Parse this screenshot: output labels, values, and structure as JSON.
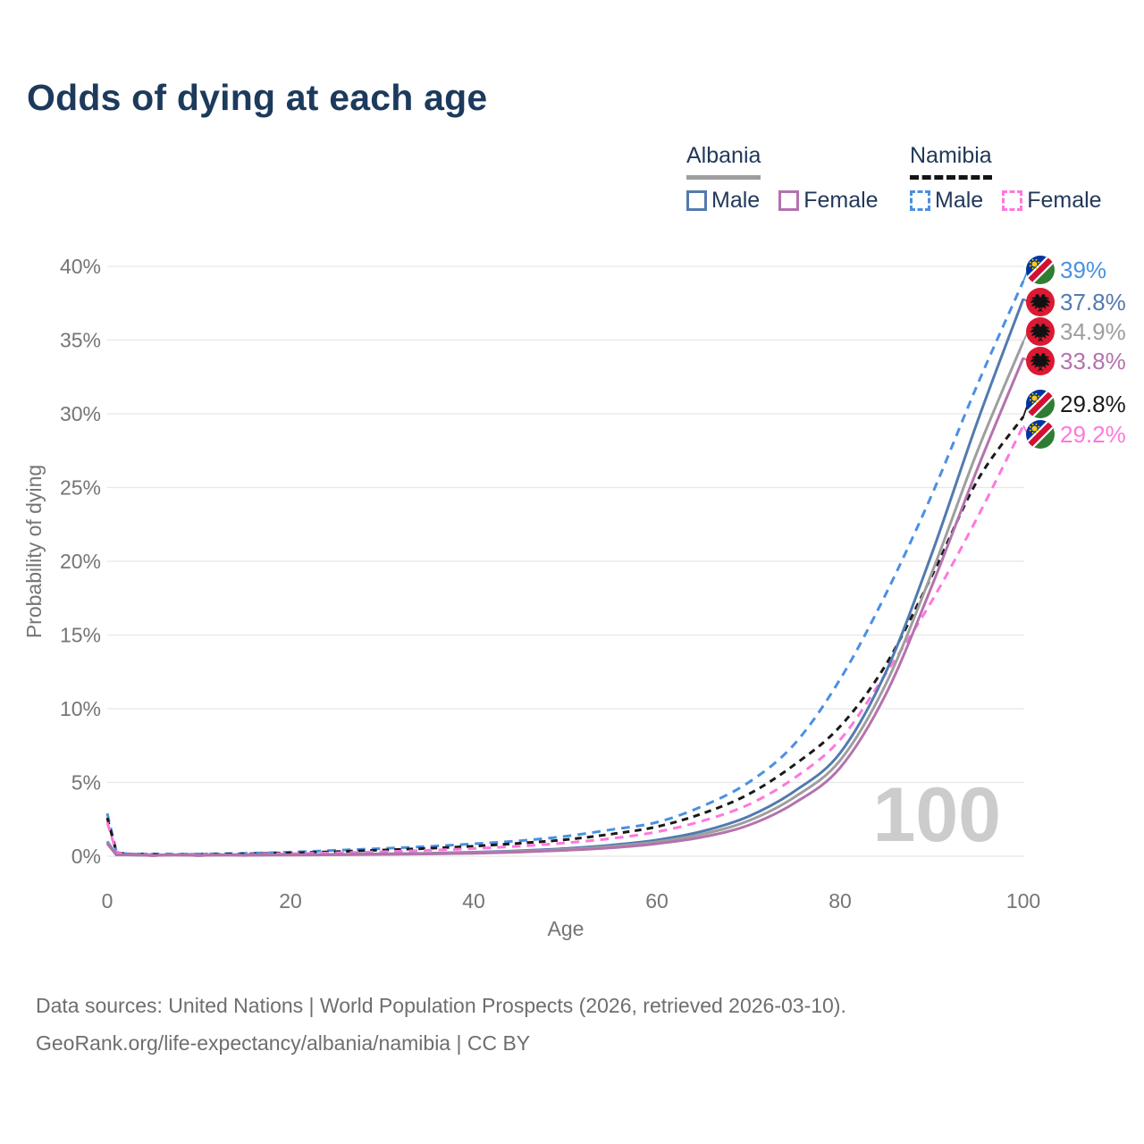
{
  "title": "Odds of dying at each age",
  "legend": {
    "albania": {
      "label": "Albania",
      "male": "Male",
      "female": "Female"
    },
    "namibia": {
      "label": "Namibia",
      "male": "Male",
      "female": "Female"
    }
  },
  "colors": {
    "title": "#1c3a5c",
    "legend_text": "#22395b",
    "axis_text": "#757575",
    "grid": "#e7e7e7",
    "watermark": "#cccccc",
    "footer": "#6e6e6e",
    "albania_underline": "#9e9e9e",
    "namibia_underline": "#141414"
  },
  "chart_data": {
    "type": "line",
    "title": "Odds of dying at each age",
    "xlabel": "Age",
    "ylabel": "Probability of dying",
    "xlim": [
      0,
      100
    ],
    "ylim": [
      0,
      40
    ],
    "x_ticks": [
      0,
      20,
      40,
      60,
      80,
      100
    ],
    "y_ticks": [
      0,
      5,
      10,
      15,
      20,
      25,
      30,
      35,
      40
    ],
    "y_tick_suffix": "%",
    "grid": "horizontal-only",
    "legend_position": "top-right",
    "watermark": "100",
    "ages": [
      0,
      1,
      5,
      10,
      15,
      20,
      25,
      30,
      35,
      40,
      45,
      50,
      55,
      60,
      65,
      70,
      75,
      80,
      85,
      90,
      95,
      100
    ],
    "series": [
      {
        "name": "Namibia Male",
        "country": "Namibia",
        "sex": "Male",
        "style": "dashed",
        "color": "#4a90e2",
        "end_value": 39,
        "end_label": "39%",
        "values": [
          2.9,
          0.3,
          0.15,
          0.15,
          0.2,
          0.28,
          0.4,
          0.52,
          0.66,
          0.84,
          1.05,
          1.35,
          1.8,
          2.3,
          3.4,
          5.0,
          7.6,
          12.0,
          17.8,
          24.5,
          32.0,
          39.0
        ]
      },
      {
        "name": "Namibia Both sexes",
        "country": "Namibia",
        "sex": "Both",
        "style": "dashed",
        "color": "#1a1a1a",
        "end_value": 29.8,
        "end_label": "29.8%",
        "values": [
          2.6,
          0.27,
          0.13,
          0.12,
          0.16,
          0.22,
          0.31,
          0.42,
          0.53,
          0.68,
          0.88,
          1.12,
          1.5,
          2.0,
          2.9,
          4.2,
          6.2,
          8.8,
          13.0,
          19.0,
          25.5,
          29.8
        ]
      },
      {
        "name": "Namibia Female",
        "country": "Namibia",
        "sex": "Female",
        "style": "dashed",
        "color": "#ff77dd",
        "end_value": 29.2,
        "end_label": "29.2%",
        "values": [
          2.3,
          0.24,
          0.11,
          0.1,
          0.12,
          0.17,
          0.23,
          0.3,
          0.4,
          0.52,
          0.68,
          0.9,
          1.2,
          1.65,
          2.4,
          3.5,
          5.3,
          7.9,
          12.4,
          17.3,
          23.0,
          29.2
        ]
      },
      {
        "name": "Albania Male",
        "country": "Albania",
        "sex": "Male",
        "style": "solid",
        "color": "#527ab0",
        "end_value": 37.8,
        "end_label": "37.8%",
        "values": [
          1.0,
          0.1,
          0.05,
          0.05,
          0.07,
          0.1,
          0.13,
          0.16,
          0.2,
          0.27,
          0.37,
          0.52,
          0.75,
          1.1,
          1.7,
          2.7,
          4.4,
          7.0,
          12.5,
          20.5,
          29.5,
          37.8
        ]
      },
      {
        "name": "Albania Both sexes",
        "country": "Albania",
        "sex": "Both",
        "style": "solid",
        "color": "#9e9e9e",
        "end_value": 34.9,
        "end_label": "34.9%",
        "values": [
          0.92,
          0.09,
          0.045,
          0.045,
          0.062,
          0.088,
          0.115,
          0.14,
          0.18,
          0.24,
          0.33,
          0.46,
          0.66,
          0.97,
          1.5,
          2.4,
          4.0,
          6.5,
          11.7,
          19.2,
          27.5,
          34.9
        ]
      },
      {
        "name": "Albania Female",
        "country": "Albania",
        "sex": "Female",
        "style": "solid",
        "color": "#b472ad",
        "end_value": 33.8,
        "end_label": "33.8%",
        "values": [
          0.85,
          0.08,
          0.04,
          0.04,
          0.055,
          0.075,
          0.1,
          0.12,
          0.15,
          0.2,
          0.28,
          0.4,
          0.57,
          0.85,
          1.3,
          2.1,
          3.6,
          6.0,
          11.0,
          18.3,
          26.3,
          33.8
        ]
      }
    ]
  },
  "footer": {
    "line1": "Data sources: United Nations | World Population Prospects (2026, retrieved 2026-03-10).",
    "line2": "GeoRank.org/life-expectancy/albania/namibia | CC BY"
  }
}
